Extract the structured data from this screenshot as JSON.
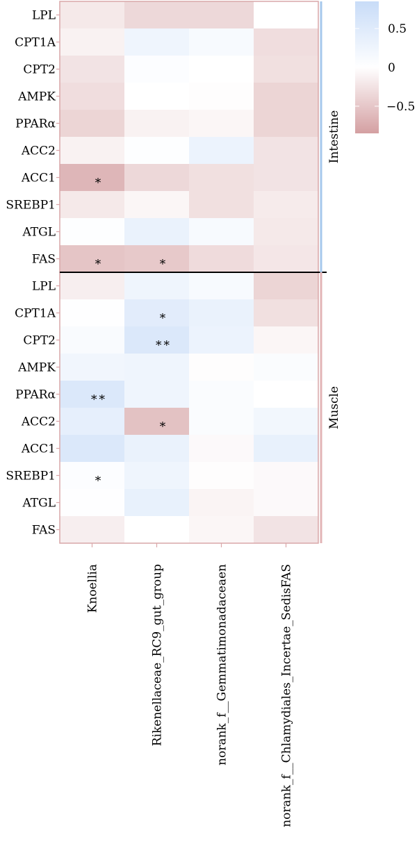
{
  "chart_data": {
    "type": "heatmap",
    "rows": [
      "LPL",
      "CPT1A",
      "CPT2",
      "AMPK",
      "PPARα",
      "ACC2",
      "ACC1",
      "SREBP1",
      "ATGL",
      "FAS",
      "LPL",
      "CPT1A",
      "CPT2",
      "AMPK",
      "PPARα",
      "ACC2",
      "ACC1",
      "SREBP1",
      "ATGL",
      "FAS"
    ],
    "columns": [
      "Knoellia",
      "Rikenellaceae_RC9_gut_group",
      "norank_f__Gemmatimonadaceaen",
      "norank_f__Chlamydiales_Incertae_SedisFAS"
    ],
    "groups": [
      {
        "name": "Intestine",
        "row_start": 0,
        "row_end": 9,
        "color": "#a6c8ec"
      },
      {
        "name": "Muscle",
        "row_start": 10,
        "row_end": 19,
        "color": "#e2b4b6"
      }
    ],
    "values": [
      [
        -0.2,
        -0.35,
        -0.35,
        0.0
      ],
      [
        -0.12,
        0.25,
        0.12,
        -0.3
      ],
      [
        -0.25,
        0.05,
        0.0,
        -0.28
      ],
      [
        -0.3,
        0.0,
        -0.02,
        -0.38
      ],
      [
        -0.38,
        -0.12,
        -0.08,
        -0.38
      ],
      [
        -0.12,
        0.03,
        0.3,
        -0.25
      ],
      [
        -0.65,
        -0.35,
        -0.28,
        -0.25
      ],
      [
        -0.2,
        -0.08,
        -0.28,
        -0.18
      ],
      [
        0.03,
        0.32,
        0.12,
        -0.2
      ],
      [
        -0.52,
        -0.48,
        -0.32,
        -0.22
      ],
      [
        -0.15,
        0.25,
        0.12,
        -0.38
      ],
      [
        0.02,
        0.45,
        0.32,
        -0.28
      ],
      [
        0.1,
        0.55,
        0.3,
        -0.08
      ],
      [
        0.22,
        0.25,
        -0.02,
        0.08
      ],
      [
        0.55,
        0.25,
        0.08,
        0.0
      ],
      [
        0.38,
        -0.55,
        0.08,
        0.2
      ],
      [
        0.55,
        0.32,
        -0.05,
        0.35
      ],
      [
        0.05,
        0.25,
        -0.02,
        -0.05
      ],
      [
        0.02,
        0.35,
        -0.1,
        -0.05
      ],
      [
        -0.15,
        0.0,
        -0.08,
        -0.25
      ]
    ],
    "significance": [
      [
        "",
        "",
        "",
        ""
      ],
      [
        "",
        "",
        "",
        ""
      ],
      [
        "",
        "",
        "",
        ""
      ],
      [
        "",
        "",
        "",
        ""
      ],
      [
        "",
        "",
        "",
        ""
      ],
      [
        "",
        "",
        "",
        ""
      ],
      [
        "*",
        "",
        "",
        ""
      ],
      [
        "",
        "",
        "",
        ""
      ],
      [
        "",
        "",
        "",
        ""
      ],
      [
        "*",
        "*",
        "",
        ""
      ],
      [
        "",
        "",
        "",
        ""
      ],
      [
        "",
        "*",
        "",
        ""
      ],
      [
        "",
        "**",
        "",
        ""
      ],
      [
        "",
        "",
        "",
        ""
      ],
      [
        "**",
        "",
        "",
        ""
      ],
      [
        "",
        "*",
        "",
        ""
      ],
      [
        "",
        "",
        "",
        ""
      ],
      [
        "*",
        "",
        "",
        ""
      ],
      [
        "",
        "",
        "",
        ""
      ],
      [
        "",
        "",
        "",
        ""
      ]
    ],
    "colorbar": {
      "range": [
        -0.85,
        0.85
      ],
      "ticks": [
        0.5,
        0,
        -0.5
      ],
      "tick_labels": [
        "0.5",
        "0",
        "−0.5"
      ],
      "low_color": "#d4a0a2",
      "mid_color": "#ffffff",
      "high_color": "#c8dcf8"
    },
    "colors": {
      "panel_border": "#d9a7a9",
      "divider": "#000000"
    }
  }
}
